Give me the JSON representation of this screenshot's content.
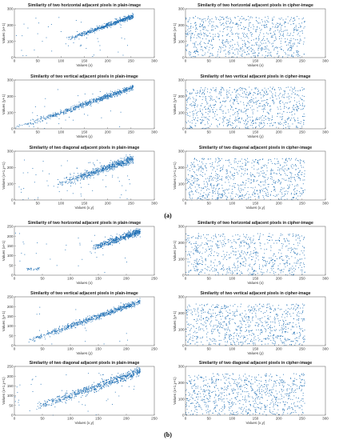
{
  "figure": {
    "panel_labels": [
      "(a)",
      "(b)"
    ],
    "point_color": "#1f6fb4"
  },
  "chart_data": [
    {
      "type": "scatter",
      "group": "(a)",
      "title": "Similarity of two horizontal adjacent pixels in plain-image",
      "xlabel": "Values (x)",
      "ylabel": "Values (x+1)",
      "xlim": [
        0,
        300
      ],
      "ylim": [
        0,
        300
      ],
      "xticks": [
        0,
        50,
        100,
        150,
        200,
        250,
        300
      ],
      "yticks": [
        0,
        100,
        200,
        300
      ],
      "pattern": "diagonal",
      "n": 600,
      "points": [
        [
          120,
          128
        ],
        [
          140,
          145
        ],
        [
          160,
          160
        ],
        [
          180,
          178
        ],
        [
          200,
          205
        ],
        [
          220,
          222
        ],
        [
          240,
          238
        ],
        [
          250,
          250
        ],
        [
          60,
          100
        ],
        [
          80,
          40
        ],
        [
          100,
          160
        ],
        [
          230,
          120
        ]
      ]
    },
    {
      "type": "scatter",
      "group": "(a)",
      "title": "Similarity of two horizontal adjacent pixels in cipher-image",
      "xlabel": "Values (x)",
      "ylabel": "Values (x+1)",
      "xlim": [
        0,
        300
      ],
      "ylim": [
        0,
        300
      ],
      "xticks": [
        0,
        50,
        100,
        150,
        200,
        250,
        300
      ],
      "yticks": [
        0,
        100,
        200,
        300
      ],
      "pattern": "uniform",
      "n": 800,
      "points": [
        [
          20,
          40
        ],
        [
          60,
          220
        ],
        [
          110,
          150
        ],
        [
          150,
          30
        ],
        [
          190,
          250
        ],
        [
          240,
          110
        ]
      ]
    },
    {
      "type": "scatter",
      "group": "(a)",
      "title": "Similarity of two vertical adjacent pixels in plain-image",
      "xlabel": "Values (y)",
      "ylabel": "Values (y+1)",
      "xlim": [
        0,
        300
      ],
      "ylim": [
        0,
        300
      ],
      "xticks": [
        0,
        50,
        100,
        150,
        200,
        250,
        300
      ],
      "yticks": [
        0,
        100,
        200,
        300
      ],
      "pattern": "diagonal_full",
      "n": 700,
      "points": [
        [
          10,
          12
        ],
        [
          50,
          55
        ],
        [
          100,
          98
        ],
        [
          150,
          150
        ],
        [
          200,
          205
        ],
        [
          250,
          250
        ]
      ]
    },
    {
      "type": "scatter",
      "group": "(a)",
      "title": "Similarity of two vertical adjacent pixels in cipher-image",
      "xlabel": "Values (y)",
      "ylabel": "Values (y+1)",
      "xlim": [
        0,
        300
      ],
      "ylim": [
        0,
        300
      ],
      "xticks": [
        0,
        50,
        100,
        150,
        200,
        250,
        300
      ],
      "yticks": [
        0,
        100,
        200,
        300
      ],
      "pattern": "uniform",
      "n": 800,
      "points": [
        [
          30,
          200
        ],
        [
          80,
          60
        ],
        [
          130,
          240
        ],
        [
          170,
          120
        ],
        [
          210,
          20
        ],
        [
          250,
          180
        ]
      ]
    },
    {
      "type": "scatter",
      "group": "(a)",
      "title": "Similarity of two diagonal adjacent pixels in plain-image",
      "xlabel": "Values (x,y)",
      "ylabel": "Values (x+1,y+1)",
      "xlim": [
        0,
        300
      ],
      "ylim": [
        0,
        300
      ],
      "xticks": [
        0,
        50,
        100,
        150,
        200,
        250,
        300
      ],
      "yticks": [
        0,
        100,
        200,
        300
      ],
      "pattern": "diagonal_wide",
      "n": 700,
      "points": [
        [
          30,
          10
        ],
        [
          100,
          110
        ],
        [
          150,
          140
        ],
        [
          200,
          200
        ],
        [
          240,
          240
        ],
        [
          250,
          250
        ]
      ]
    },
    {
      "type": "scatter",
      "group": "(a)",
      "title": "Similarity of two diagonal adjacent pixels in cipher-image",
      "xlabel": "Values (x,y)",
      "ylabel": "Values (x+1,y+1)",
      "xlim": [
        0,
        300
      ],
      "ylim": [
        0,
        300
      ],
      "xticks": [
        0,
        50,
        100,
        150,
        200,
        250,
        300
      ],
      "yticks": [
        0,
        100,
        200,
        300
      ],
      "pattern": "uniform",
      "n": 800,
      "points": [
        [
          15,
          90
        ],
        [
          70,
          260
        ],
        [
          120,
          10
        ],
        [
          165,
          200
        ],
        [
          220,
          70
        ],
        [
          255,
          230
        ]
      ]
    },
    {
      "type": "scatter",
      "group": "(b)",
      "title": "Similarity of two horizontal adjacent pixels in plain-image",
      "xlabel": "Values (x)",
      "ylabel": "Values (x+1)",
      "xlim": [
        0,
        250
      ],
      "ylim": [
        0,
        250
      ],
      "xticks": [
        0,
        50,
        100,
        150,
        200,
        250
      ],
      "yticks": [
        0,
        50,
        100,
        150,
        200,
        250
      ],
      "pattern": "cluster_b1",
      "n": 600,
      "points": [
        [
          25,
          35
        ],
        [
          35,
          30
        ],
        [
          150,
          150
        ],
        [
          180,
          175
        ],
        [
          200,
          200
        ],
        [
          215,
          215
        ]
      ]
    },
    {
      "type": "scatter",
      "group": "(b)",
      "title": "Similarity of two horizontal adjacent pixels in cipher-image",
      "xlabel": "Values (x)",
      "ylabel": "Values (x+1)",
      "xlim": [
        0,
        300
      ],
      "ylim": [
        0,
        300
      ],
      "xticks": [
        0,
        50,
        100,
        150,
        200,
        250,
        300
      ],
      "yticks": [
        0,
        100,
        200,
        300
      ],
      "pattern": "uniform",
      "n": 700,
      "points": [
        [
          25,
          150
        ],
        [
          90,
          40
        ],
        [
          140,
          230
        ],
        [
          185,
          90
        ],
        [
          230,
          160
        ],
        [
          250,
          20
        ]
      ]
    },
    {
      "type": "scatter",
      "group": "(b)",
      "title": "Similarity of two vertical adjacent pixels in plain-image",
      "xlabel": "Values (y)",
      "ylabel": "Values (y+1)",
      "xlim": [
        0,
        250
      ],
      "ylim": [
        0,
        250
      ],
      "xticks": [
        0,
        50,
        100,
        150,
        200,
        250
      ],
      "yticks": [
        0,
        50,
        100,
        150,
        200,
        250
      ],
      "pattern": "diagonal_b",
      "n": 700,
      "points": [
        [
          30,
          30
        ],
        [
          80,
          80
        ],
        [
          120,
          125
        ],
        [
          170,
          165
        ],
        [
          200,
          200
        ],
        [
          220,
          220
        ]
      ]
    },
    {
      "type": "scatter",
      "group": "(b)",
      "title": "Similarity of two vertical adjacent pixels in cipher-image",
      "xlabel": "Values (y)",
      "ylabel": "Values (y+1)",
      "xlim": [
        0,
        300
      ],
      "ylim": [
        0,
        300
      ],
      "xticks": [
        0,
        50,
        100,
        150,
        200,
        250,
        300
      ],
      "yticks": [
        0,
        100,
        200,
        300
      ],
      "pattern": "uniform",
      "n": 800,
      "points": [
        [
          10,
          10
        ],
        [
          75,
          180
        ],
        [
          125,
          60
        ],
        [
          175,
          250
        ],
        [
          215,
          130
        ],
        [
          255,
          40
        ]
      ]
    },
    {
      "type": "scatter",
      "group": "(b)",
      "title": "Similarity of two diagonal adjacent pixels in plain-image",
      "xlabel": "Values (x,y)",
      "ylabel": "Values (x+1,y+1)",
      "xlim": [
        0,
        250
      ],
      "ylim": [
        0,
        250
      ],
      "xticks": [
        0,
        50,
        100,
        150,
        200,
        250
      ],
      "yticks": [
        0,
        50,
        100,
        150,
        200,
        250
      ],
      "pattern": "diagonal_b_wide",
      "n": 700,
      "points": [
        [
          40,
          30
        ],
        [
          90,
          100
        ],
        [
          130,
          130
        ],
        [
          170,
          170
        ],
        [
          200,
          200
        ],
        [
          220,
          220
        ]
      ]
    },
    {
      "type": "scatter",
      "group": "(b)",
      "title": "Similarity of two diagonal adjacent pixels in cipher-image",
      "xlabel": "Values (x,y)",
      "ylabel": "Values (x+1,y+1)",
      "xlim": [
        0,
        300
      ],
      "ylim": [
        0,
        300
      ],
      "xticks": [
        0,
        50,
        100,
        150,
        200,
        250,
        300
      ],
      "yticks": [
        0,
        100,
        200,
        300
      ],
      "pattern": "uniform",
      "n": 800,
      "points": [
        [
          20,
          240
        ],
        [
          65,
          120
        ],
        [
          115,
          200
        ],
        [
          160,
          40
        ],
        [
          210,
          250
        ],
        [
          250,
          100
        ]
      ]
    }
  ]
}
